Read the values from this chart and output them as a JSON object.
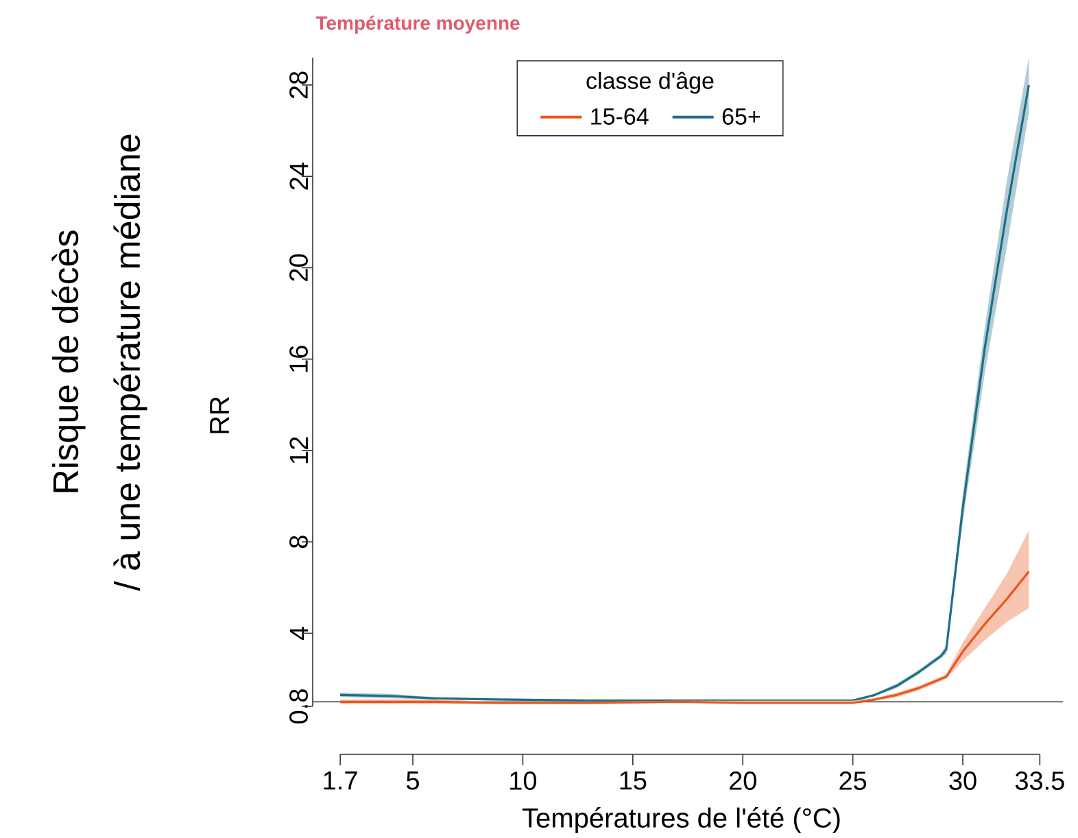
{
  "chart_data": {
    "type": "line",
    "title": "Température moyenne",
    "xlabel": "Températures de l'été (°C)",
    "ylabel": "RR",
    "annotations": [
      "Risque de décès",
      "/ à une température médiane"
    ],
    "legend_title": "classe d'âge",
    "legend": "top",
    "x": [
      1.7,
      4,
      6,
      9,
      13,
      17,
      20,
      22,
      25,
      26,
      27,
      28,
      29,
      29.25,
      30,
      31,
      32,
      33
    ],
    "series": [
      {
        "name": "15-64",
        "color": "#e8561e",
        "values": [
          1.0,
          1.0,
          1.0,
          0.95,
          0.95,
          1.0,
          0.95,
          0.95,
          0.95,
          1.1,
          1.3,
          1.6,
          2.0,
          2.1,
          3.2,
          4.4,
          5.5,
          6.7
        ],
        "lower": [
          0.9,
          0.9,
          0.9,
          0.9,
          0.9,
          0.95,
          0.95,
          0.95,
          0.95,
          1.05,
          1.2,
          1.5,
          1.9,
          2.0,
          2.8,
          3.7,
          4.5,
          5.1
        ],
        "upper": [
          1.1,
          1.1,
          1.1,
          1.0,
          1.0,
          1.05,
          1.05,
          1.05,
          1.05,
          1.15,
          1.4,
          1.7,
          2.1,
          2.2,
          3.6,
          5.1,
          6.6,
          8.5
        ]
      },
      {
        "name": "65+",
        "color": "#1f6e87",
        "values": [
          1.3,
          1.25,
          1.15,
          1.1,
          1.05,
          1.05,
          1.05,
          1.05,
          1.05,
          1.3,
          1.7,
          2.3,
          3.0,
          3.3,
          9.5,
          16.5,
          22.5,
          28
        ],
        "lower": [
          1.2,
          1.15,
          1.1,
          1.05,
          1.0,
          1.0,
          1.0,
          0.95,
          1.0,
          1.25,
          1.6,
          2.2,
          2.9,
          3.1,
          8.9,
          15.4,
          20.9,
          26.8
        ],
        "upper": [
          1.4,
          1.35,
          1.2,
          1.15,
          1.1,
          1.1,
          1.1,
          1.05,
          1.1,
          1.35,
          1.8,
          2.4,
          3.1,
          3.5,
          10.1,
          17.4,
          23.8,
          29.2
        ]
      }
    ],
    "ref_lines": [
      {
        "axis": "y",
        "value": 1,
        "color": "#555555"
      }
    ],
    "xlim": [
      0.45,
      34.55
    ],
    "ylim": [
      0.8,
      29.2
    ],
    "xticks": [
      1.7,
      5,
      10,
      15,
      20,
      25,
      30,
      33.5
    ],
    "yticks": [
      0.8,
      4,
      8,
      12,
      16,
      20,
      24,
      28
    ],
    "grid": false,
    "line_style": "solid",
    "marker": "none"
  }
}
